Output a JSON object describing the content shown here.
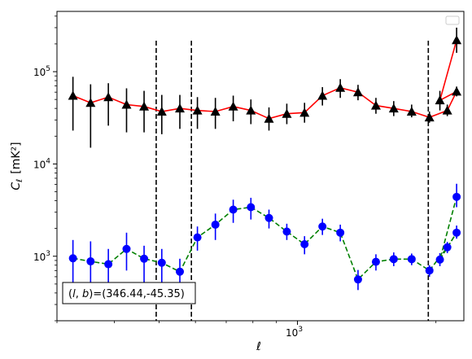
{
  "chart_data": {
    "type": "line",
    "title": "",
    "xlabel": "ℓ",
    "ylabel_main": "C",
    "ylabel_sub": "ℓ",
    "ylabel_unit": "[mK²]",
    "xscale": "log",
    "yscale": "log",
    "xlim": [
      300,
      2300
    ],
    "ylim": [
      200,
      450000
    ],
    "x_major_ticks": [
      {
        "value": 1000,
        "base": "10",
        "exp": "3"
      }
    ],
    "y_major_ticks": [
      {
        "value": 1000,
        "base": "10",
        "exp": "3"
      },
      {
        "value": 10000,
        "base": "10",
        "exp": "4"
      },
      {
        "value": 100000,
        "base": "10",
        "exp": "5"
      }
    ],
    "vlines": [
      493,
      588,
      1925
    ],
    "legend_placement": "top-right",
    "annotation": "(l, b)=(346.44,-45.35)",
    "annotation_parts": {
      "prefix": "(",
      "l": "l",
      "comma": ", ",
      "b": "b",
      "suffix": ")=(346.44,-45.35)"
    },
    "series": [
      {
        "style": "solid-triangle",
        "color": "#ff0000",
        "marker_color": "#000000",
        "error_color": "#000000",
        "x": [
          325,
          355,
          388,
          425,
          464,
          507,
          555,
          606,
          663,
          725,
          792,
          867,
          948,
          1036,
          1133,
          1239,
          1354,
          1481,
          1619,
          1771,
          1936,
          2117,
          2218
        ],
        "y": [
          55000,
          46000,
          53000,
          44000,
          42000,
          37000,
          40000,
          38000,
          37000,
          42000,
          38000,
          31000,
          35000,
          36000,
          55000,
          67000,
          60000,
          43000,
          40000,
          37000,
          32000,
          38000,
          61000
        ],
        "y_extra": [
          49000,
          220000
        ],
        "x_extra": [
          2040,
          2218
        ],
        "err_low": [
          23000,
          15000,
          26000,
          22000,
          22000,
          21000,
          24000,
          24000,
          24000,
          29000,
          27000,
          23000,
          27000,
          28000,
          43000,
          52000,
          49000,
          35000,
          33000,
          32000,
          28000,
          33000,
          54000
        ],
        "err_high": [
          88000,
          73000,
          75000,
          66000,
          62000,
          56000,
          56000,
          53000,
          52000,
          55000,
          50000,
          41000,
          45000,
          46000,
          68000,
          83000,
          72000,
          52000,
          48000,
          44000,
          37000,
          44000,
          69000
        ]
      },
      {
        "style": "dashed-circle",
        "color": "#008000",
        "marker_color": "#0000ff",
        "error_color": "#0000ff",
        "x": [
          325,
          355,
          388,
          425,
          464,
          507,
          555,
          606,
          663,
          725,
          792,
          867,
          948,
          1036,
          1133,
          1239,
          1354,
          1481,
          1619,
          1771,
          1936,
          2117,
          2218
        ],
        "y": [
          950,
          880,
          820,
          1200,
          940,
          850,
          680,
          1600,
          2200,
          3200,
          3400,
          2600,
          1850,
          1350,
          2100,
          1800,
          560,
          870,
          930,
          930,
          700,
          1250,
          1800
        ],
        "x_extra": [
          2040,
          2218
        ],
        "y_extra": [
          920,
          4400
        ],
        "err_low": [
          320,
          320,
          310,
          700,
          480,
          480,
          380,
          1150,
          1500,
          2300,
          2500,
          2000,
          1500,
          1050,
          1700,
          1450,
          430,
          700,
          780,
          800,
          600,
          1080,
          1550
        ],
        "err_high": [
          1500,
          1450,
          1200,
          1800,
          1300,
          1200,
          940,
          2100,
          2900,
          4100,
          4300,
          3200,
          2250,
          1650,
          2550,
          2200,
          710,
          1050,
          1100,
          1070,
          800,
          1430,
          2150
        ]
      }
    ]
  }
}
